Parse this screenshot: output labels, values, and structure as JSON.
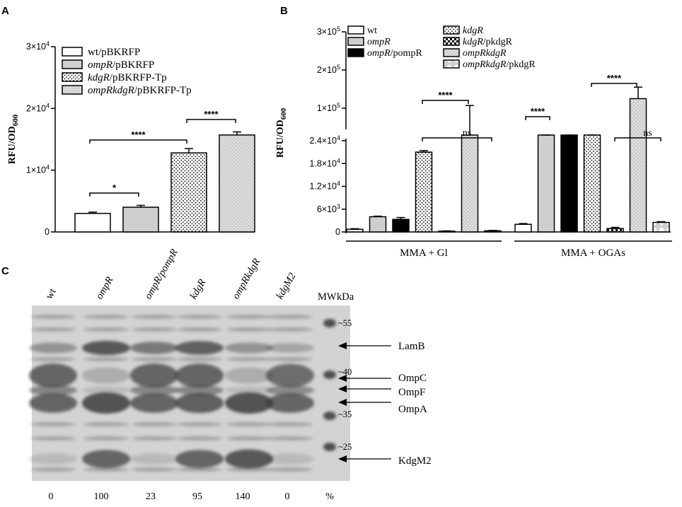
{
  "colors": {
    "white": "#ffffff",
    "lightgray": "#cfcfcf",
    "black": "#000000",
    "gel_bg": "#d6d6d6",
    "band": "#5a5a5a"
  },
  "panelA": {
    "letter": "A",
    "ylabel_main": "RFU/OD",
    "ylabel_sub": "600",
    "yticks": [
      {
        "v": 0,
        "base": "0",
        "exp": ""
      },
      {
        "v": 10000,
        "base": "1×10",
        "exp": "4"
      },
      {
        "v": 20000,
        "base": "2×10",
        "exp": "4"
      },
      {
        "v": 30000,
        "base": "3×10",
        "exp": "4"
      }
    ],
    "legend": [
      {
        "italic": "",
        "rest": "wt/pBKRFP",
        "pattern": "white"
      },
      {
        "italic": "ompR",
        "rest": "/pBKRFP",
        "pattern": "gray"
      },
      {
        "italic": "kdgR",
        "rest": "/pBKRFP-Tp",
        "pattern": "dots"
      },
      {
        "italic": "ompRkdgR",
        "rest": "/pBKRFP-Tp",
        "pattern": "dotsgray"
      }
    ],
    "significance": [
      "*",
      "****",
      "****"
    ]
  },
  "panelB": {
    "letter": "B",
    "ylabel_main": "RFU/OD",
    "ylabel_sub": "600",
    "yticks_low": [
      "0",
      "6×10",
      "1.2×10",
      "1.8×10",
      "2.4×10"
    ],
    "yticks_low_exp": [
      "",
      "3",
      "4",
      "4",
      "4"
    ],
    "yticks_high": [
      "1×10",
      "2×10",
      "3×10"
    ],
    "yticks_high_exp": [
      "5",
      "5",
      "5"
    ],
    "legend": [
      {
        "italic": "",
        "rest": "wt",
        "pattern": "white"
      },
      {
        "italic": "ompR",
        "rest": "",
        "pattern": "gray"
      },
      {
        "italic": "ompR",
        "rest": "/pompR",
        "pattern": "black"
      },
      {
        "italic": "kdgR",
        "rest": "",
        "pattern": "dots"
      },
      {
        "italic": "kdgR",
        "rest": "/pkdgR",
        "pattern": "check"
      },
      {
        "italic": "ompRkdgR",
        "rest": "",
        "pattern": "dotsgray"
      },
      {
        "italic": "ompRkdgR",
        "rest": "/pkdgR",
        "pattern": "diamond"
      }
    ],
    "groups": [
      "MMA + Gl",
      "MMA + OGAs"
    ],
    "significance": [
      "****",
      "ns",
      "****",
      "****",
      "ns"
    ]
  },
  "panelC": {
    "letter": "C",
    "lanes": [
      "wt",
      "ompR",
      "ompR/pompR",
      "kdgR",
      "ompRkdgR",
      "kdgM2"
    ],
    "mw_label": "MW",
    "kda_label": "kDa",
    "markers": [
      "~55",
      "~40",
      "~35",
      "~25"
    ],
    "bands": [
      "LamB",
      "OmpC",
      "OmpF",
      "OmpA",
      "KdgM2"
    ],
    "percents": [
      "0",
      "100",
      "23",
      "95",
      "140",
      "0"
    ],
    "percent_unit": "%"
  },
  "chart_data": [
    {
      "type": "bar",
      "panel": "A",
      "ylabel": "RFU/OD600",
      "ylim": [
        0,
        30000
      ],
      "categories": [
        "wt/pBKRFP",
        "ompR/pBKRFP",
        "kdgR/pBKRFP-Tp",
        "ompRkdgR/pBKRFP-Tp"
      ],
      "values": [
        3000,
        4000,
        12800,
        15700
      ],
      "errors": [
        200,
        300,
        700,
        500
      ],
      "legend_position": "top-left"
    },
    {
      "type": "bar",
      "panel": "B",
      "ylabel": "RFU/OD600",
      "axis_break": [
        24000,
        100000
      ],
      "ylim": [
        0,
        300000
      ],
      "categories": [
        "MMA + Gl",
        "MMA + OGAs"
      ],
      "series": [
        {
          "name": "wt",
          "values": [
            700,
            2000
          ],
          "errors": [
            150,
            200
          ]
        },
        {
          "name": "ompR",
          "values": [
            4000,
            69000
          ],
          "errors": [
            150,
            5000
          ]
        },
        {
          "name": "ompR/pompR",
          "values": [
            3300,
            67000
          ],
          "errors": [
            500,
            2000
          ]
        },
        {
          "name": "kdgR",
          "values": [
            21000,
            68000
          ],
          "errors": [
            400,
            1500
          ]
        },
        {
          "name": "kdgR/pkdgR",
          "values": [
            200,
            900
          ],
          "errors": [
            80,
            300
          ]
        },
        {
          "name": "ompRkdgR",
          "values": [
            98000,
            125000
          ],
          "errors": [
            9000,
            30000
          ]
        },
        {
          "name": "ompRkdgR/pkdgR",
          "values": [
            300,
            2500
          ],
          "errors": [
            100,
            200
          ]
        }
      ],
      "legend_position": "top"
    }
  ]
}
